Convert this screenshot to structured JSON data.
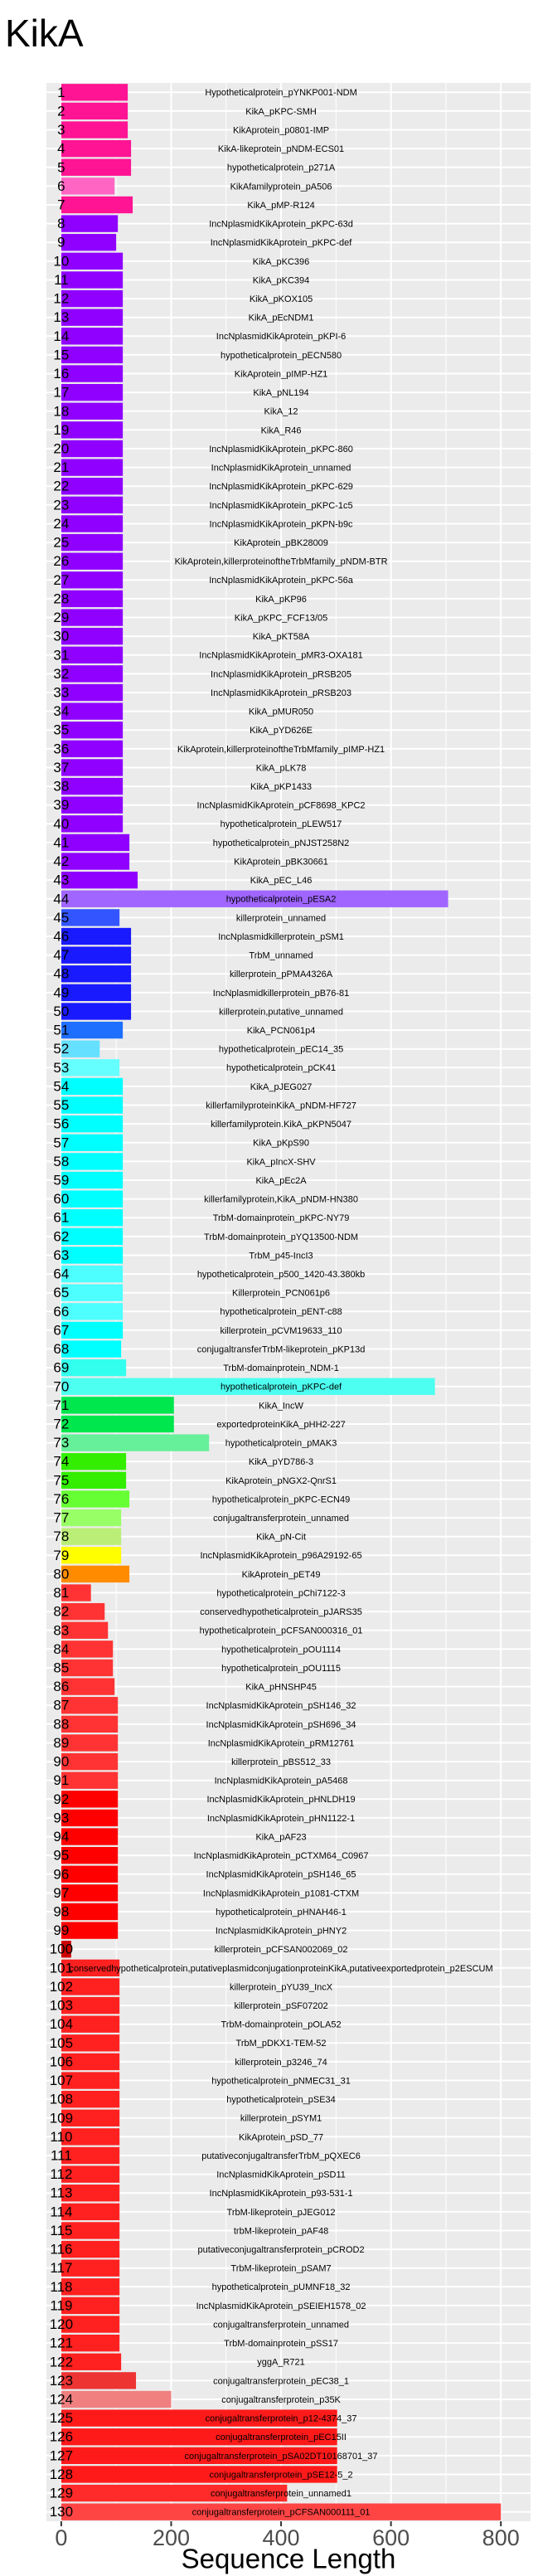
{
  "chart_data": {
    "type": "barh",
    "title": "KikA",
    "x_label": "Sequence Length",
    "xlim": [
      -27,
      854
    ],
    "xticks": [
      0,
      200,
      400,
      600,
      800
    ],
    "grid": true,
    "row_numbers": [
      "1",
      "2",
      "3",
      "4",
      "5",
      "6",
      "7",
      "8",
      "9",
      "10",
      "11",
      "12",
      "13",
      "14",
      "15",
      "16",
      "17",
      "18",
      "19",
      "20",
      "21",
      "22",
      "23",
      "24",
      "25",
      "26",
      "27",
      "28",
      "29",
      "30",
      "31",
      "32",
      "33",
      "34",
      "35",
      "36",
      "37",
      "38",
      "39",
      "40",
      "41",
      "42",
      "43",
      "44",
      "45",
      "46",
      "47",
      "48",
      "49",
      "50",
      "51",
      "52",
      "53",
      "54",
      "55",
      "56",
      "57",
      "58",
      "59",
      "60",
      "61",
      "62",
      "63",
      "64",
      "65",
      "66",
      "67",
      "68",
      "69",
      "70",
      "71",
      "72",
      "73",
      "74",
      "75",
      "76",
      "77",
      "78",
      "79",
      "80",
      "81",
      "82",
      "83",
      "84",
      "85",
      "86",
      "87",
      "88",
      "89",
      "90",
      "91",
      "92",
      "93",
      "94",
      "95",
      "96",
      "97",
      "98",
      "99",
      "100",
      "101",
      "102",
      "103",
      "104",
      "105",
      "106",
      "107",
      "108",
      "109",
      "110",
      "111",
      "112",
      "113",
      "114",
      "115",
      "116",
      "117",
      "118",
      "119",
      "120",
      "121",
      "122",
      "123",
      "124",
      "125",
      "126",
      "127",
      "128",
      "129",
      "130"
    ],
    "categories": [
      "Hypotheticalprotein_pYNKP001-NDM",
      "KikA_pKPC-SMH",
      "KikAprotein_p0801-IMP",
      "KikA-likeprotein_pNDM-ECS01",
      "hypotheticalprotein_p271A",
      "KikAfamilyprotein_pA506",
      "KikA_pMP-R124",
      "IncNplasmidKikAprotein_pKPC-63d",
      "IncNplasmidKikAprotein_pKPC-def",
      "KikA_pKC396",
      "KikA_pKC394",
      "KikA_pKOX105",
      "KikA_pEcNDM1",
      "IncNplasmidKikAprotein_pKPI-6",
      "hypotheticalprotein_pECN580",
      "KikAprotein_pIMP-HZ1",
      "KikA_pNL194",
      "KikA_12",
      "KikA_R46",
      "IncNplasmidKikAprotein_pKPC-860",
      "IncNplasmidKikAprotein_unnamed",
      "IncNplasmidKikAprotein_pKPC-629",
      "IncNplasmidKikAprotein_pKPC-1c5",
      "IncNplasmidKikAprotein_pKPN-b9c",
      "KikAprotein_pBK28009",
      "KikAprotein,killerproteinoftheTrbMfamily_pNDM-BTR",
      "IncNplasmidKikAprotein_pKPC-56a",
      "KikA_pKP96",
      "KikA_pKPC_FCF13/05",
      "KikA_pKT58A",
      "IncNplasmidKikAprotein_pMR3-OXA181",
      "IncNplasmidKikAprotein_pRSB205",
      "IncNplasmidKikAprotein_pRSB203",
      "KikA_pMUR050",
      "KikA_pYD626E",
      "KikAprotein,killerproteinoftheTrbMfamily_pIMP-HZ1",
      "KikA_pLK78",
      "KikA_pKP1433",
      "IncNplasmidKikAprotein_pCF8698_KPC2",
      "hypotheticalprotein_pLEW517",
      "hypotheticalprotein_pNJST258N2",
      "KikAprotein_pBK30661",
      "KikA_pEC_L46",
      "hypotheticalprotein_pESA2",
      "killerprotein_unnamed",
      "IncNplasmidkillerprotein_pSM1",
      "TrbM_unnamed",
      "killerprotein_pPMA4326A",
      "IncNplasmidkillerprotein_pB76-81",
      "killerprotein,putative_unnamed",
      "KikA_PCN061p4",
      "hypotheticalprotein_pEC14_35",
      "hypotheticalprotein_pCK41",
      "KikA_pJEG027",
      "killerfamilyproteinKikA_pNDM-HF727",
      "killerfamilyprotein.KikA_pKPN5047",
      "KikA_pKpS90",
      "KikA_pIncX-SHV",
      "KikA_pEc2A",
      "killerfamilyprotein,KikA_pNDM-HN380",
      "TrbM-domainprotein_pKPC-NY79",
      "TrbM-domainprotein_pYQ13500-NDM",
      "TrbM_p45-IncI3",
      "hypotheticalprotein_p500_1420-43.380kb",
      "Killerprotein_PCN061p6",
      "hypotheticalprotein_pENT-c88",
      "killerprotein_pCVM19633_110",
      "conjugaltransferTrbM-likeprotein_pKP13d",
      "TrbM-domainprotein_NDM-1",
      "hypotheticalprotein_pKPC-def",
      "KikA_IncW",
      "exportedproteinKikA_pHH2-227",
      "hypotheticalprotein_pMAK3",
      "KikA_pYD786-3",
      "KikAprotein_pNGX2-QnrS1",
      "hypotheticalprotein_pKPC-ECN49",
      "conjugaltransferprotein_unnamed",
      "KikA_pN-Cit",
      "IncNplasmidKikAprotein_p96A29192-65",
      "KikAprotein_pET49",
      "hypotheticalprotein_pChi7122-3",
      "conservedhypotheticalprotein_pJARS35",
      "hypotheticalprotein_pCFSAN000316_01",
      "hypotheticalprotein_pOU1114",
      "hypotheticalprotein_pOU1115",
      "KikA_pHNSHP45",
      "IncNplasmidKikAprotein_pSH146_32",
      "IncNplasmidKikAprotein_pSH696_34",
      "IncNplasmidKikAprotein_pRM12761",
      "killerprotein_pBS512_33",
      "IncNplasmidKikAprotein_pA5468",
      "IncNplasmidKikAprotein_pHNLDH19",
      "IncNplasmidKikAprotein_pHN1122-1",
      "KikA_pAF23",
      "IncNplasmidKikAprotein_pCTXM64_C0967",
      "IncNplasmidKikAprotein_pSH146_65",
      "IncNplasmidKikAprotein_p1081-CTXM",
      "hypotheticalprotein_pHNAH46-1",
      "IncNplasmidKikAprotein_pHNY2",
      "killerprotein_pCFSAN002069_02",
      "conservedhypotheticalprotein,putativeplasmidconjugationproteinKikA,putativeexportedprotein_p2ESCUM",
      "killerprotein_pYU39_IncX",
      "killerprotein_pSF07202",
      "TrbM-domainprotein_pOLA52",
      "TrbM_pDKX1-TEM-52",
      "killerprotein_p3246_74",
      "hypotheticalprotein_pNMEC31_31",
      "hypotheticalprotein_pSE34",
      "killerprotein_pSYM1",
      "KikAprotein_pSD_77",
      "putativeconjugaltransferTrbM_pQXEC6",
      "IncNplasmidKikAprotein_pSD11",
      "IncNplasmidKikAprotein_p93-531-1",
      "TrbM-likeprotein_pJEG012",
      "trbM-likeprotein_pAF48",
      "putativeconjugaltransferprotein_pCROD2",
      "TrbM-likeprotein_pSAM7",
      "hypotheticalprotein_pUMNF18_32",
      "IncNplasmidKikAprotein_pSEIEH1578_02",
      "conjugaltransferprotein_unnamed",
      "TrbM-domainprotein_pSS17",
      "yggA_R721",
      "conjugaltransferprotein_pEC38_1",
      "conjugaltransferprotein_p35K",
      "conjugaltransferprotein_p12-4374_37",
      "conjugaltransferprotein_pEC15II",
      "conjugaltransferprotein_pSA02DT10168701_37",
      "conjugaltransferprotein_pSE12-5_2",
      "conjugaltransferprotein_unnamed1",
      "conjugaltransferprotein_pCFSAN000111_01"
    ],
    "values": [
      121,
      121,
      121,
      127,
      127,
      97,
      130,
      103,
      100,
      112,
      112,
      112,
      112,
      112,
      112,
      112,
      112,
      112,
      112,
      112,
      112,
      112,
      112,
      112,
      112,
      112,
      112,
      112,
      112,
      112,
      112,
      112,
      112,
      112,
      112,
      112,
      112,
      112,
      112,
      112,
      124,
      124,
      139,
      704,
      106,
      127,
      127,
      127,
      127,
      127,
      112,
      70,
      106,
      112,
      112,
      112,
      112,
      112,
      112,
      112,
      112,
      112,
      112,
      112,
      112,
      112,
      112,
      109,
      118,
      680,
      205,
      205,
      269,
      118,
      118,
      124,
      109,
      109,
      109,
      124,
      54,
      79,
      85,
      94,
      94,
      97,
      103,
      103,
      103,
      103,
      103,
      103,
      103,
      103,
      103,
      103,
      103,
      103,
      103,
      18,
      106,
      106,
      106,
      106,
      106,
      106,
      106,
      106,
      106,
      106,
      106,
      106,
      106,
      106,
      106,
      106,
      106,
      106,
      106,
      106,
      106,
      109,
      136,
      200,
      502,
      502,
      502,
      502,
      411,
      800
    ],
    "colors": [
      "#ff1493",
      "#ff1493",
      "#ff1493",
      "#ff1493",
      "#ff1493",
      "#ff66c4",
      "#ff1493",
      "#8f00ff",
      "#8f00ff",
      "#8f00ff",
      "#8f00ff",
      "#8f00ff",
      "#8f00ff",
      "#8f00ff",
      "#8f00ff",
      "#8f00ff",
      "#8f00ff",
      "#8f00ff",
      "#8f00ff",
      "#8f00ff",
      "#8f00ff",
      "#8f00ff",
      "#8f00ff",
      "#8f00ff",
      "#8f00ff",
      "#8f00ff",
      "#8f00ff",
      "#8f00ff",
      "#8f00ff",
      "#8f00ff",
      "#8f00ff",
      "#8f00ff",
      "#8f00ff",
      "#8f00ff",
      "#8f00ff",
      "#8f00ff",
      "#8f00ff",
      "#8f00ff",
      "#8f00ff",
      "#8f00ff",
      "#8f00ff",
      "#8f00ff",
      "#8f00ff",
      "#a066ff",
      "#3355ff",
      "#1a1aff",
      "#1a1aff",
      "#1a1aff",
      "#1a1aff",
      "#1a1aff",
      "#1f6fff",
      "#66e0ff",
      "#66ffff",
      "#00ffff",
      "#00ffff",
      "#00ffff",
      "#00ffff",
      "#00ffff",
      "#00ffff",
      "#00ffff",
      "#00ffff",
      "#00ffff",
      "#00ffff",
      "#4dffff",
      "#4dffff",
      "#4dffff",
      "#00ffff",
      "#00ffff",
      "#33ffee",
      "#4dfff0",
      "#00e64d",
      "#00e64d",
      "#66f09a",
      "#33ee00",
      "#33ee00",
      "#66ff33",
      "#99ff66",
      "#bbee77",
      "#ffff00",
      "#ff8c00",
      "#ff3333",
      "#ff3333",
      "#ff3333",
      "#ff3333",
      "#ff3333",
      "#ff3333",
      "#ff3333",
      "#ff3333",
      "#ff3333",
      "#ff3333",
      "#ff3333",
      "#ff0000",
      "#ff0000",
      "#ff0000",
      "#ff0000",
      "#ff0000",
      "#ff0000",
      "#ff0000",
      "#ff0000",
      "#cc0000",
      "#ff2020",
      "#ff2020",
      "#ff2020",
      "#ff2020",
      "#ff2020",
      "#ff2020",
      "#ff2020",
      "#ff2020",
      "#ff2020",
      "#ff2020",
      "#ff2020",
      "#ff2020",
      "#ff2020",
      "#ff2020",
      "#ff2020",
      "#ff2020",
      "#ff2020",
      "#ff2020",
      "#ff2020",
      "#ff2020",
      "#ff2020",
      "#ff2020",
      "#ee3333",
      "#f08080",
      "#ff1a1a",
      "#ff1a1a",
      "#ff1a1a",
      "#ff1a1a",
      "#ff2a2a",
      "#ff4444"
    ]
  }
}
